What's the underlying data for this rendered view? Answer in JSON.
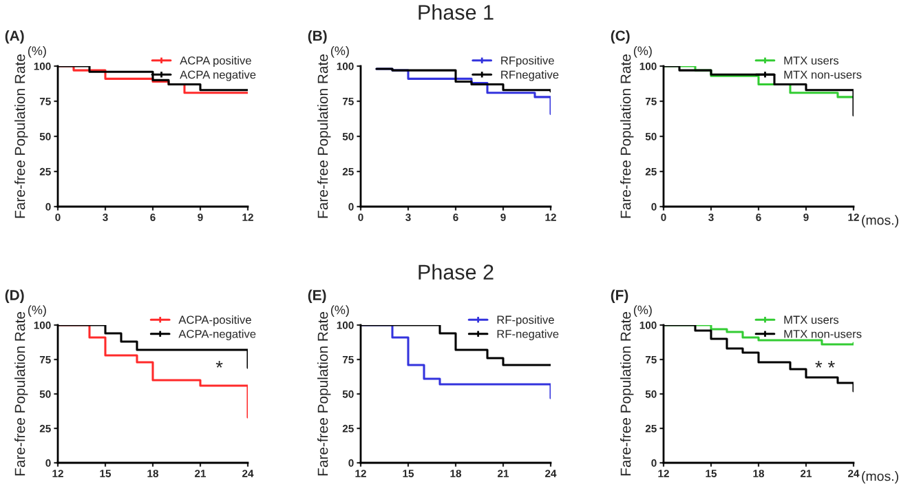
{
  "chart_data": [
    {
      "type": "step",
      "title": "(A)",
      "ylabel": "Fare-free Population Rate",
      "annotations": [
        "(%)"
      ],
      "xlim": [
        0,
        12
      ],
      "xticks": [
        0,
        3,
        6,
        9,
        12
      ],
      "ylim": [
        0,
        100
      ],
      "yticks": [
        0,
        25,
        50,
        75,
        100
      ],
      "legend": "top right",
      "grid": false,
      "series": [
        {
          "name": "ACPA positive",
          "color": "#ff2a2a",
          "x": [
            0,
            1,
            3,
            6,
            7,
            8,
            12
          ],
          "values": [
            100,
            97,
            91,
            89,
            87,
            81,
            81
          ]
        },
        {
          "name": "ACPA negative",
          "color": "#000000",
          "x": [
            0,
            2,
            6,
            7,
            9,
            12
          ],
          "values": [
            100,
            96,
            90,
            87,
            83,
            83
          ]
        }
      ]
    },
    {
      "type": "step",
      "title": "(B)",
      "subtitle": "Phase 1",
      "ylabel": "Fare-free Population Rate",
      "annotations": [
        "(%)"
      ],
      "xlim": [
        0,
        12
      ],
      "xticks": [
        0,
        3,
        6,
        9,
        12
      ],
      "ylim": [
        0,
        100
      ],
      "yticks": [
        0,
        25,
        50,
        75,
        100
      ],
      "legend": "top right",
      "grid": false,
      "series": [
        {
          "name": "RFpositive",
          "color": "#3333dd",
          "x": [
            1,
            2,
            3,
            7,
            8,
            11,
            12
          ],
          "values": [
            98,
            97,
            91,
            88,
            81,
            78,
            66
          ]
        },
        {
          "name": "RFnegative",
          "color": "#000000",
          "x": [
            1,
            2,
            6,
            7,
            9,
            12
          ],
          "values": [
            98,
            97,
            89,
            87,
            83,
            82
          ]
        }
      ]
    },
    {
      "type": "step",
      "title": "(C)",
      "ylabel": "Fare-free Population Rate",
      "xlabel": "(mos.)",
      "annotations": [
        "(%)"
      ],
      "xlim": [
        0,
        12
      ],
      "xticks": [
        0,
        3,
        6,
        9,
        12
      ],
      "ylim": [
        0,
        100
      ],
      "yticks": [
        0,
        25,
        50,
        75,
        100
      ],
      "legend": "top right",
      "grid": false,
      "series": [
        {
          "name": "MTX users",
          "color": "#33cc33",
          "x": [
            0,
            2,
            3,
            6,
            8,
            11,
            12
          ],
          "values": [
            100,
            97,
            93,
            87,
            81,
            78,
            78
          ]
        },
        {
          "name": "MTX non-users",
          "color": "#000000",
          "x": [
            0,
            1,
            3,
            7,
            9,
            12
          ],
          "values": [
            100,
            97,
            94,
            87,
            83,
            65
          ]
        }
      ]
    },
    {
      "type": "step",
      "title": "(D)",
      "ylabel": "Fare-free Population Rate",
      "annotations": [
        "(%)",
        "*"
      ],
      "xlim": [
        12,
        24
      ],
      "xticks": [
        12,
        15,
        18,
        21,
        24
      ],
      "ylim": [
        0,
        100
      ],
      "yticks": [
        0,
        25,
        50,
        75,
        100
      ],
      "legend": "top right",
      "grid": false,
      "series": [
        {
          "name": "ACPA-positive",
          "color": "#ff2a2a",
          "x": [
            12,
            14,
            15,
            17,
            18,
            21,
            24
          ],
          "values": [
            100,
            91,
            78,
            73,
            60,
            56,
            33
          ]
        },
        {
          "name": "ACPA-negative",
          "color": "#000000",
          "x": [
            12,
            15,
            16,
            17,
            24
          ],
          "values": [
            100,
            94,
            88,
            82,
            69
          ]
        }
      ]
    },
    {
      "type": "step",
      "title": "(E)",
      "subtitle": "Phase 2",
      "ylabel": "Fare-free Population Rate",
      "annotations": [
        "(%)"
      ],
      "xlim": [
        12,
        24
      ],
      "xticks": [
        12,
        15,
        18,
        21,
        24
      ],
      "ylim": [
        0,
        100
      ],
      "yticks": [
        0,
        25,
        50,
        75,
        100
      ],
      "legend": "top right",
      "grid": false,
      "series": [
        {
          "name": "RF-positive",
          "color": "#3333dd",
          "x": [
            12,
            14,
            15,
            16,
            17,
            24
          ],
          "values": [
            100,
            91,
            71,
            61,
            57,
            47
          ]
        },
        {
          "name": "RF-negative",
          "color": "#000000",
          "x": [
            12,
            17,
            18,
            20,
            21,
            24
          ],
          "values": [
            100,
            94,
            82,
            76,
            71,
            71
          ]
        }
      ]
    },
    {
      "type": "step",
      "title": "(F)",
      "ylabel": "Fare-free Population Rate",
      "xlabel": "(mos.)",
      "annotations": [
        "(%)",
        "* *"
      ],
      "xlim": [
        12,
        24
      ],
      "xticks": [
        12,
        15,
        18,
        21,
        24
      ],
      "ylim": [
        0,
        100
      ],
      "yticks": [
        0,
        25,
        50,
        75,
        100
      ],
      "legend": "top right",
      "grid": false,
      "series": [
        {
          "name": "MTX users",
          "color": "#33cc33",
          "x": [
            12,
            15,
            16,
            17,
            18,
            22,
            24
          ],
          "values": [
            100,
            97,
            95,
            91,
            89,
            86,
            87
          ]
        },
        {
          "name": "MTX non-users",
          "color": "#000000",
          "x": [
            12,
            14,
            15,
            16,
            17,
            18,
            20,
            21,
            23,
            24
          ],
          "values": [
            100,
            96,
            90,
            83,
            80,
            73,
            68,
            62,
            58,
            52
          ]
        }
      ]
    }
  ]
}
